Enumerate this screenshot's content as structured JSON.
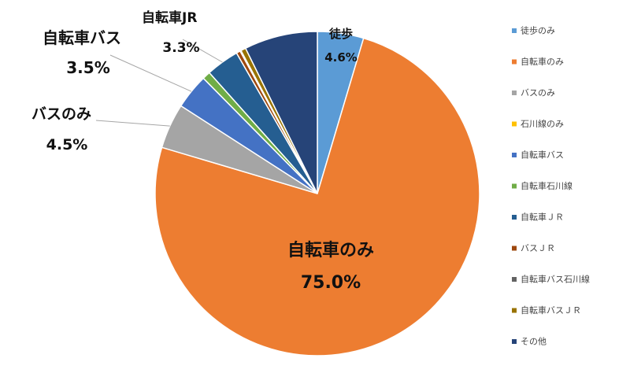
{
  "chart_data": {
    "type": "pie",
    "slices": [
      {
        "label": "徒歩のみ",
        "value": 4.6,
        "color": "#5b9bd5"
      },
      {
        "label": "自転車のみ",
        "value": 75.0,
        "color": "#ed7d31"
      },
      {
        "label": "バスのみ",
        "value": 4.5,
        "color": "#a5a5a5"
      },
      {
        "label": "石川線のみ",
        "value": 0.0,
        "color": "#ffc000"
      },
      {
        "label": "自転車バス",
        "value": 3.5,
        "color": "#4472c4"
      },
      {
        "label": "自転車石川線",
        "value": 0.8,
        "color": "#70ad47"
      },
      {
        "label": "自転車ＪＲ",
        "value": 3.3,
        "color": "#255e91"
      },
      {
        "label": "バスＪＲ",
        "value": 0.4,
        "color": "#9e480e"
      },
      {
        "label": "自転車バス石川線",
        "value": 0.1,
        "color": "#636363"
      },
      {
        "label": "自転車バスＪＲ",
        "value": 0.5,
        "color": "#997300"
      },
      {
        "label": "その他",
        "value": 7.3,
        "color": "#264478"
      }
    ],
    "legend_position": "right",
    "annotations": [
      {
        "name": "徒歩",
        "pct": "4.6%"
      },
      {
        "name": "自転車のみ",
        "pct": "75.0%"
      },
      {
        "name": "バスのみ",
        "pct": "4.5%"
      },
      {
        "name": "自転車バス",
        "pct": "3.5%"
      },
      {
        "name": "自転車JR",
        "pct": "3.3%"
      }
    ]
  }
}
